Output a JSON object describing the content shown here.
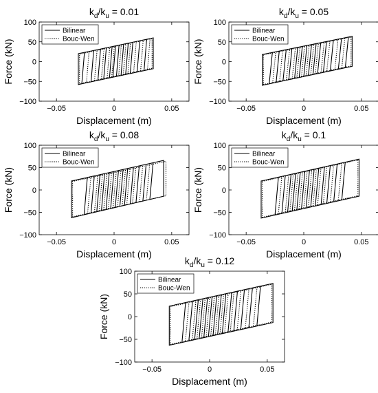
{
  "chart_data": [
    {
      "type": "line",
      "title": "k_d/k_u = 0.01",
      "title_parts": {
        "k1": "k",
        "sub1": "d",
        "slash": "/",
        "k2": "k",
        "sub2": "u",
        "value": " = 0.01"
      },
      "xlabel": "Displacement (m)",
      "ylabel": "Force (kN)",
      "xlim": [
        -0.065,
        0.065
      ],
      "ylim": [
        -100,
        100
      ],
      "xticks": [
        -0.05,
        0,
        0.05
      ],
      "xtick_labels": [
        "−0.05",
        "0",
        "0.05"
      ],
      "yticks": [
        -100,
        -50,
        0,
        50,
        100
      ],
      "ytick_labels": [
        "−100",
        "−50",
        "0",
        "50",
        "100"
      ],
      "grid": false,
      "legend": {
        "position": "top-left",
        "entries": [
          "Bilinear",
          "Bouc-Wen"
        ]
      },
      "series": [
        {
          "name": "Bilinear",
          "style": "solid",
          "loop": {
            "x": [
              -0.031,
              0.034,
              0.034,
              -0.031
            ],
            "y": [
              -58,
              -18,
              60,
              20
            ]
          },
          "branches": [
            -0.028,
            -0.02,
            -0.014,
            -0.009,
            -0.004,
            -0.001,
            0.002,
            0.006,
            0.01,
            0.014,
            0.02,
            0.026
          ]
        },
        {
          "name": "Bouc-Wen",
          "style": "dotted",
          "loop": {
            "x": [
              -0.03,
              0.033,
              0.033,
              -0.03
            ],
            "y": [
              -56,
              -17,
              58,
              19
            ]
          },
          "branches": [
            -0.024,
            -0.017,
            -0.011,
            -0.006,
            -0.002,
            0.004,
            0.008,
            0.012,
            0.017,
            0.023,
            0.029
          ]
        }
      ]
    },
    {
      "type": "line",
      "title": "k_d/k_u = 0.05",
      "title_parts": {
        "k1": "k",
        "sub1": "d",
        "slash": "/",
        "k2": "k",
        "sub2": "u",
        "value": " = 0.05"
      },
      "xlabel": "Displacement (m)",
      "ylabel": "Force (kN)",
      "xlim": [
        -0.065,
        0.065
      ],
      "ylim": [
        -100,
        100
      ],
      "xticks": [
        -0.05,
        0,
        0.05
      ],
      "xtick_labels": [
        "−0.05",
        "0",
        "0.05"
      ],
      "yticks": [
        -100,
        -50,
        0,
        50,
        100
      ],
      "ytick_labels": [
        "−100",
        "−50",
        "0",
        "50",
        "100"
      ],
      "grid": false,
      "legend": {
        "position": "top-left",
        "entries": [
          "Bilinear",
          "Bouc-Wen"
        ]
      },
      "series": [
        {
          "name": "Bilinear",
          "style": "solid",
          "loop": {
            "x": [
              -0.036,
              0.042,
              0.042,
              -0.036
            ],
            "y": [
              -60,
              -12,
              64,
              18
            ]
          },
          "branches": [
            -0.03,
            -0.024,
            -0.018,
            -0.013,
            -0.008,
            -0.004,
            0.0,
            0.004,
            0.008,
            0.012,
            0.017,
            0.023,
            0.03,
            0.036
          ]
        },
        {
          "name": "Bouc-Wen",
          "style": "dotted",
          "loop": {
            "x": [
              -0.035,
              0.041,
              0.041,
              -0.035
            ],
            "y": [
              -58,
              -11,
              62,
              17
            ]
          },
          "branches": [
            -0.027,
            -0.021,
            -0.015,
            -0.01,
            -0.006,
            -0.002,
            0.002,
            0.006,
            0.01,
            0.015,
            0.02,
            0.027,
            0.033
          ]
        }
      ]
    },
    {
      "type": "line",
      "title": "k_d/k_u = 0.08",
      "title_parts": {
        "k1": "k",
        "sub1": "d",
        "slash": "/",
        "k2": "k",
        "sub2": "u",
        "value": " = 0.08"
      },
      "xlabel": "Displacement (m)",
      "ylabel": "Force (kN)",
      "xlim": [
        -0.065,
        0.065
      ],
      "ylim": [
        -100,
        100
      ],
      "xticks": [
        -0.05,
        0,
        0.05
      ],
      "xtick_labels": [
        "−0.05",
        "0",
        "0.05"
      ],
      "yticks": [
        -100,
        -50,
        0,
        50,
        100
      ],
      "ytick_labels": [
        "−100",
        "−50",
        "0",
        "50",
        "100"
      ],
      "grid": false,
      "legend": {
        "position": "top-left",
        "entries": [
          "Bilinear",
          "Bouc-Wen"
        ]
      },
      "series": [
        {
          "name": "Bilinear",
          "style": "solid",
          "loop": {
            "x": [
              -0.037,
              0.043,
              0.043,
              -0.037
            ],
            "y": [
              -62,
              -14,
              66,
              20
            ]
          },
          "branches": [
            -0.026,
            -0.02,
            -0.015,
            -0.011,
            -0.007,
            -0.003,
            0.001,
            0.005,
            0.009,
            0.014,
            0.019,
            0.025,
            0.031
          ]
        },
        {
          "name": "Bouc-Wen",
          "style": "dotted",
          "loop": {
            "x": [
              -0.036,
              0.045,
              0.045,
              -0.036
            ],
            "y": [
              -60,
              -13,
              64,
              19
            ]
          },
          "branches": [
            -0.023,
            -0.017,
            -0.013,
            -0.009,
            -0.005,
            -0.001,
            0.003,
            0.007,
            0.011,
            0.016,
            0.022,
            0.028
          ]
        }
      ]
    },
    {
      "type": "line",
      "title": "k_d/k_u = 0.1",
      "title_parts": {
        "k1": "k",
        "sub1": "d",
        "slash": "/",
        "k2": "k",
        "sub2": "u",
        "value": " = 0.1"
      },
      "xlabel": "Displacement (m)",
      "ylabel": "Force (kN)",
      "xlim": [
        -0.065,
        0.065
      ],
      "ylim": [
        -100,
        100
      ],
      "xticks": [
        -0.05,
        0,
        0.05
      ],
      "xtick_labels": [
        "−0.05",
        "0",
        "0.05"
      ],
      "yticks": [
        -100,
        -50,
        0,
        50,
        100
      ],
      "ytick_labels": [
        "−100",
        "−50",
        "0",
        "50",
        "100"
      ],
      "grid": false,
      "legend": {
        "position": "top-left",
        "entries": [
          "Bilinear",
          "Bouc-Wen"
        ]
      },
      "series": [
        {
          "name": "Bilinear",
          "style": "solid",
          "loop": {
            "x": [
              -0.037,
              0.048,
              0.048,
              -0.037
            ],
            "y": [
              -63,
              -14,
              69,
              20
            ]
          },
          "branches": [
            -0.025,
            -0.019,
            -0.014,
            -0.01,
            -0.006,
            -0.002,
            0.002,
            0.006,
            0.01,
            0.015,
            0.02,
            0.026,
            0.033
          ]
        },
        {
          "name": "Bouc-Wen",
          "style": "dotted",
          "loop": {
            "x": [
              -0.036,
              0.047,
              0.047,
              -0.036
            ],
            "y": [
              -61,
              -13,
              67,
              19
            ]
          },
          "branches": [
            -0.022,
            -0.016,
            -0.012,
            -0.008,
            -0.004,
            0.0,
            0.004,
            0.008,
            0.012,
            0.017,
            0.023,
            0.03
          ]
        }
      ]
    },
    {
      "type": "line",
      "title": "k_d/k_u = 0.12",
      "title_parts": {
        "k1": "k",
        "sub1": "d",
        "slash": "/",
        "k2": "k",
        "sub2": "u",
        "value": " = 0.12"
      },
      "xlabel": "Displacement (m)",
      "ylabel": "Force (kN)",
      "xlim": [
        -0.065,
        0.065
      ],
      "ylim": [
        -100,
        100
      ],
      "xticks": [
        -0.05,
        0,
        0.05
      ],
      "xtick_labels": [
        "−0.05",
        "0",
        "0.05"
      ],
      "yticks": [
        -100,
        -50,
        0,
        50,
        100
      ],
      "ytick_labels": [
        "−100",
        "−50",
        "0",
        "50",
        "100"
      ],
      "grid": false,
      "legend": {
        "position": "top-left",
        "entries": [
          "Bilinear",
          "Bouc-Wen"
        ]
      },
      "series": [
        {
          "name": "Bilinear",
          "style": "solid",
          "loop": {
            "x": [
              -0.035,
              0.055,
              0.055,
              -0.035
            ],
            "y": [
              -63,
              -13,
              73,
              23
            ]
          },
          "branches": [
            -0.024,
            -0.018,
            -0.013,
            -0.009,
            -0.005,
            -0.001,
            0.003,
            0.007,
            0.011,
            0.016,
            0.021,
            0.027,
            0.034,
            0.041
          ]
        },
        {
          "name": "Bouc-Wen",
          "style": "dotted",
          "loop": {
            "x": [
              -0.034,
              0.054,
              0.054,
              -0.034
            ],
            "y": [
              -61,
              -12,
              71,
              22
            ]
          },
          "branches": [
            -0.021,
            -0.015,
            -0.011,
            -0.007,
            -0.003,
            0.001,
            0.005,
            0.009,
            0.013,
            0.018,
            0.024,
            0.031,
            0.038
          ]
        }
      ]
    }
  ]
}
